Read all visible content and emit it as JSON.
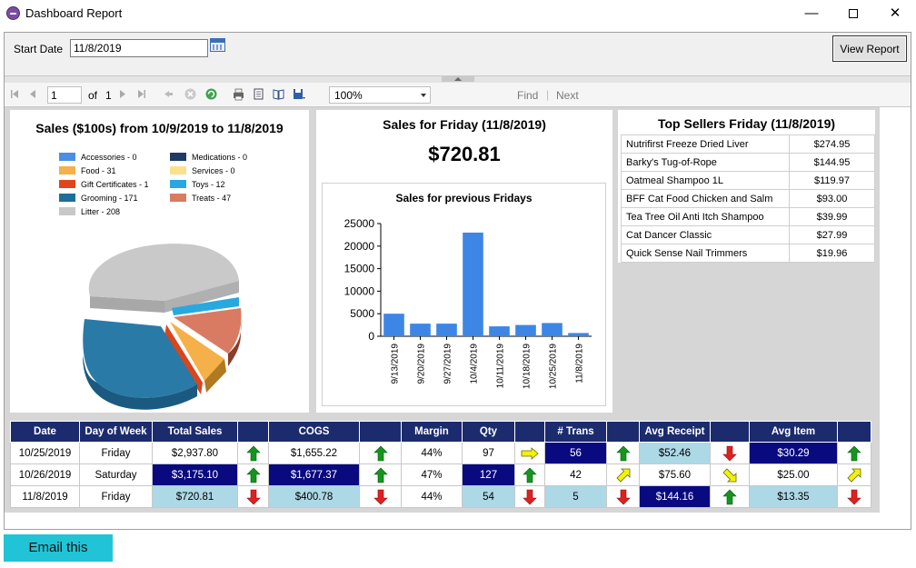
{
  "window": {
    "title": "Dashboard Report",
    "minimize": "—",
    "close": "✕"
  },
  "params": {
    "start_date_label": "Start Date",
    "start_date_value": "11/8/2019",
    "view_report": "View Report"
  },
  "toolbar": {
    "page": "1",
    "of_label": "of",
    "total_pages": "1",
    "zoom": "100%",
    "find": "Find",
    "next": "Next"
  },
  "pie_panel": {
    "title": "Sales ($100s) from 10/9/2019 to 11/8/2019",
    "legend": [
      {
        "label": "Accessories - 0",
        "color": "#4a8fe2"
      },
      {
        "label": "Medications - 0",
        "color": "#1f3b63"
      },
      {
        "label": "Food - 31",
        "color": "#f5b04a"
      },
      {
        "label": "Services - 0",
        "color": "#fbe08e"
      },
      {
        "label": "Gift Certificates - 1",
        "color": "#e0451b"
      },
      {
        "label": "Toys - 12",
        "color": "#29a8e0"
      },
      {
        "label": "Grooming - 171",
        "color": "#1f6d99"
      },
      {
        "label": "Treats - 47",
        "color": "#d97b62"
      },
      {
        "label": "Litter - 208",
        "color": "#c8c8c8"
      }
    ]
  },
  "friday_panel": {
    "title": "Sales for Friday (11/8/2019)",
    "amount": "$720.81",
    "chart_title": "Sales for previous Fridays"
  },
  "chart_data": {
    "type": "bar",
    "title": "Sales for previous Fridays",
    "categories": [
      "9/13/2019",
      "9/20/2019",
      "9/27/2019",
      "10/4/2019",
      "10/11/2019",
      "10/18/2019",
      "10/25/2019",
      "11/8/2019"
    ],
    "values": [
      5000,
      2800,
      2800,
      23000,
      2200,
      2500,
      2937.8,
      720.81
    ],
    "ylim": [
      0,
      25000
    ],
    "yticks": [
      0,
      5000,
      10000,
      15000,
      20000,
      25000
    ],
    "color": "#3d86e5",
    "legend": "none",
    "grid": false
  },
  "top_sellers": {
    "title": "Top Sellers Friday (11/8/2019)",
    "rows": [
      {
        "name": "Nutrifirst Freeze Dried Liver",
        "value": "$274.95"
      },
      {
        "name": "Barky's Tug-of-Rope",
        "value": "$144.95"
      },
      {
        "name": "Oatmeal Shampoo 1L",
        "value": "$119.97"
      },
      {
        "name": "BFF Cat Food Chicken and Salm",
        "value": "$93.00"
      },
      {
        "name": "Tea Tree Oil Anti Itch Shampoo",
        "value": "$39.99"
      },
      {
        "name": "Cat Dancer Classic",
        "value": "$27.99"
      },
      {
        "name": "Quick Sense Nail Trimmers",
        "value": "$19.96"
      }
    ]
  },
  "kpi": {
    "headers": [
      "Date",
      "Day of Week",
      "Total Sales",
      "",
      "COGS",
      "",
      "Margin",
      "Qty",
      "",
      "# Trans",
      "",
      "Avg Receipt",
      "",
      "Avg Item",
      ""
    ],
    "rows": [
      {
        "date": "10/25/2019",
        "day": "Friday",
        "sales": "$2,937.80",
        "cogs": "$1,655.22",
        "margin": "44%",
        "qty": "97",
        "trans": "56",
        "receipt": "$52.46",
        "item": "$30.29"
      },
      {
        "date": "10/26/2019",
        "day": "Saturday",
        "sales": "$3,175.10",
        "cogs": "$1,677.37",
        "margin": "47%",
        "qty": "127",
        "trans": "42",
        "receipt": "$75.60",
        "item": "$25.00"
      },
      {
        "date": "11/8/2019",
        "day": "Friday",
        "sales": "$720.81",
        "cogs": "$400.78",
        "margin": "44%",
        "qty": "54",
        "trans": "5",
        "receipt": "$144.16",
        "item": "$13.35"
      }
    ],
    "arrow_colors": {
      "up": "#14961e",
      "down": "#e02020",
      "side": "#f2f20a"
    }
  },
  "email_button": "Email this"
}
